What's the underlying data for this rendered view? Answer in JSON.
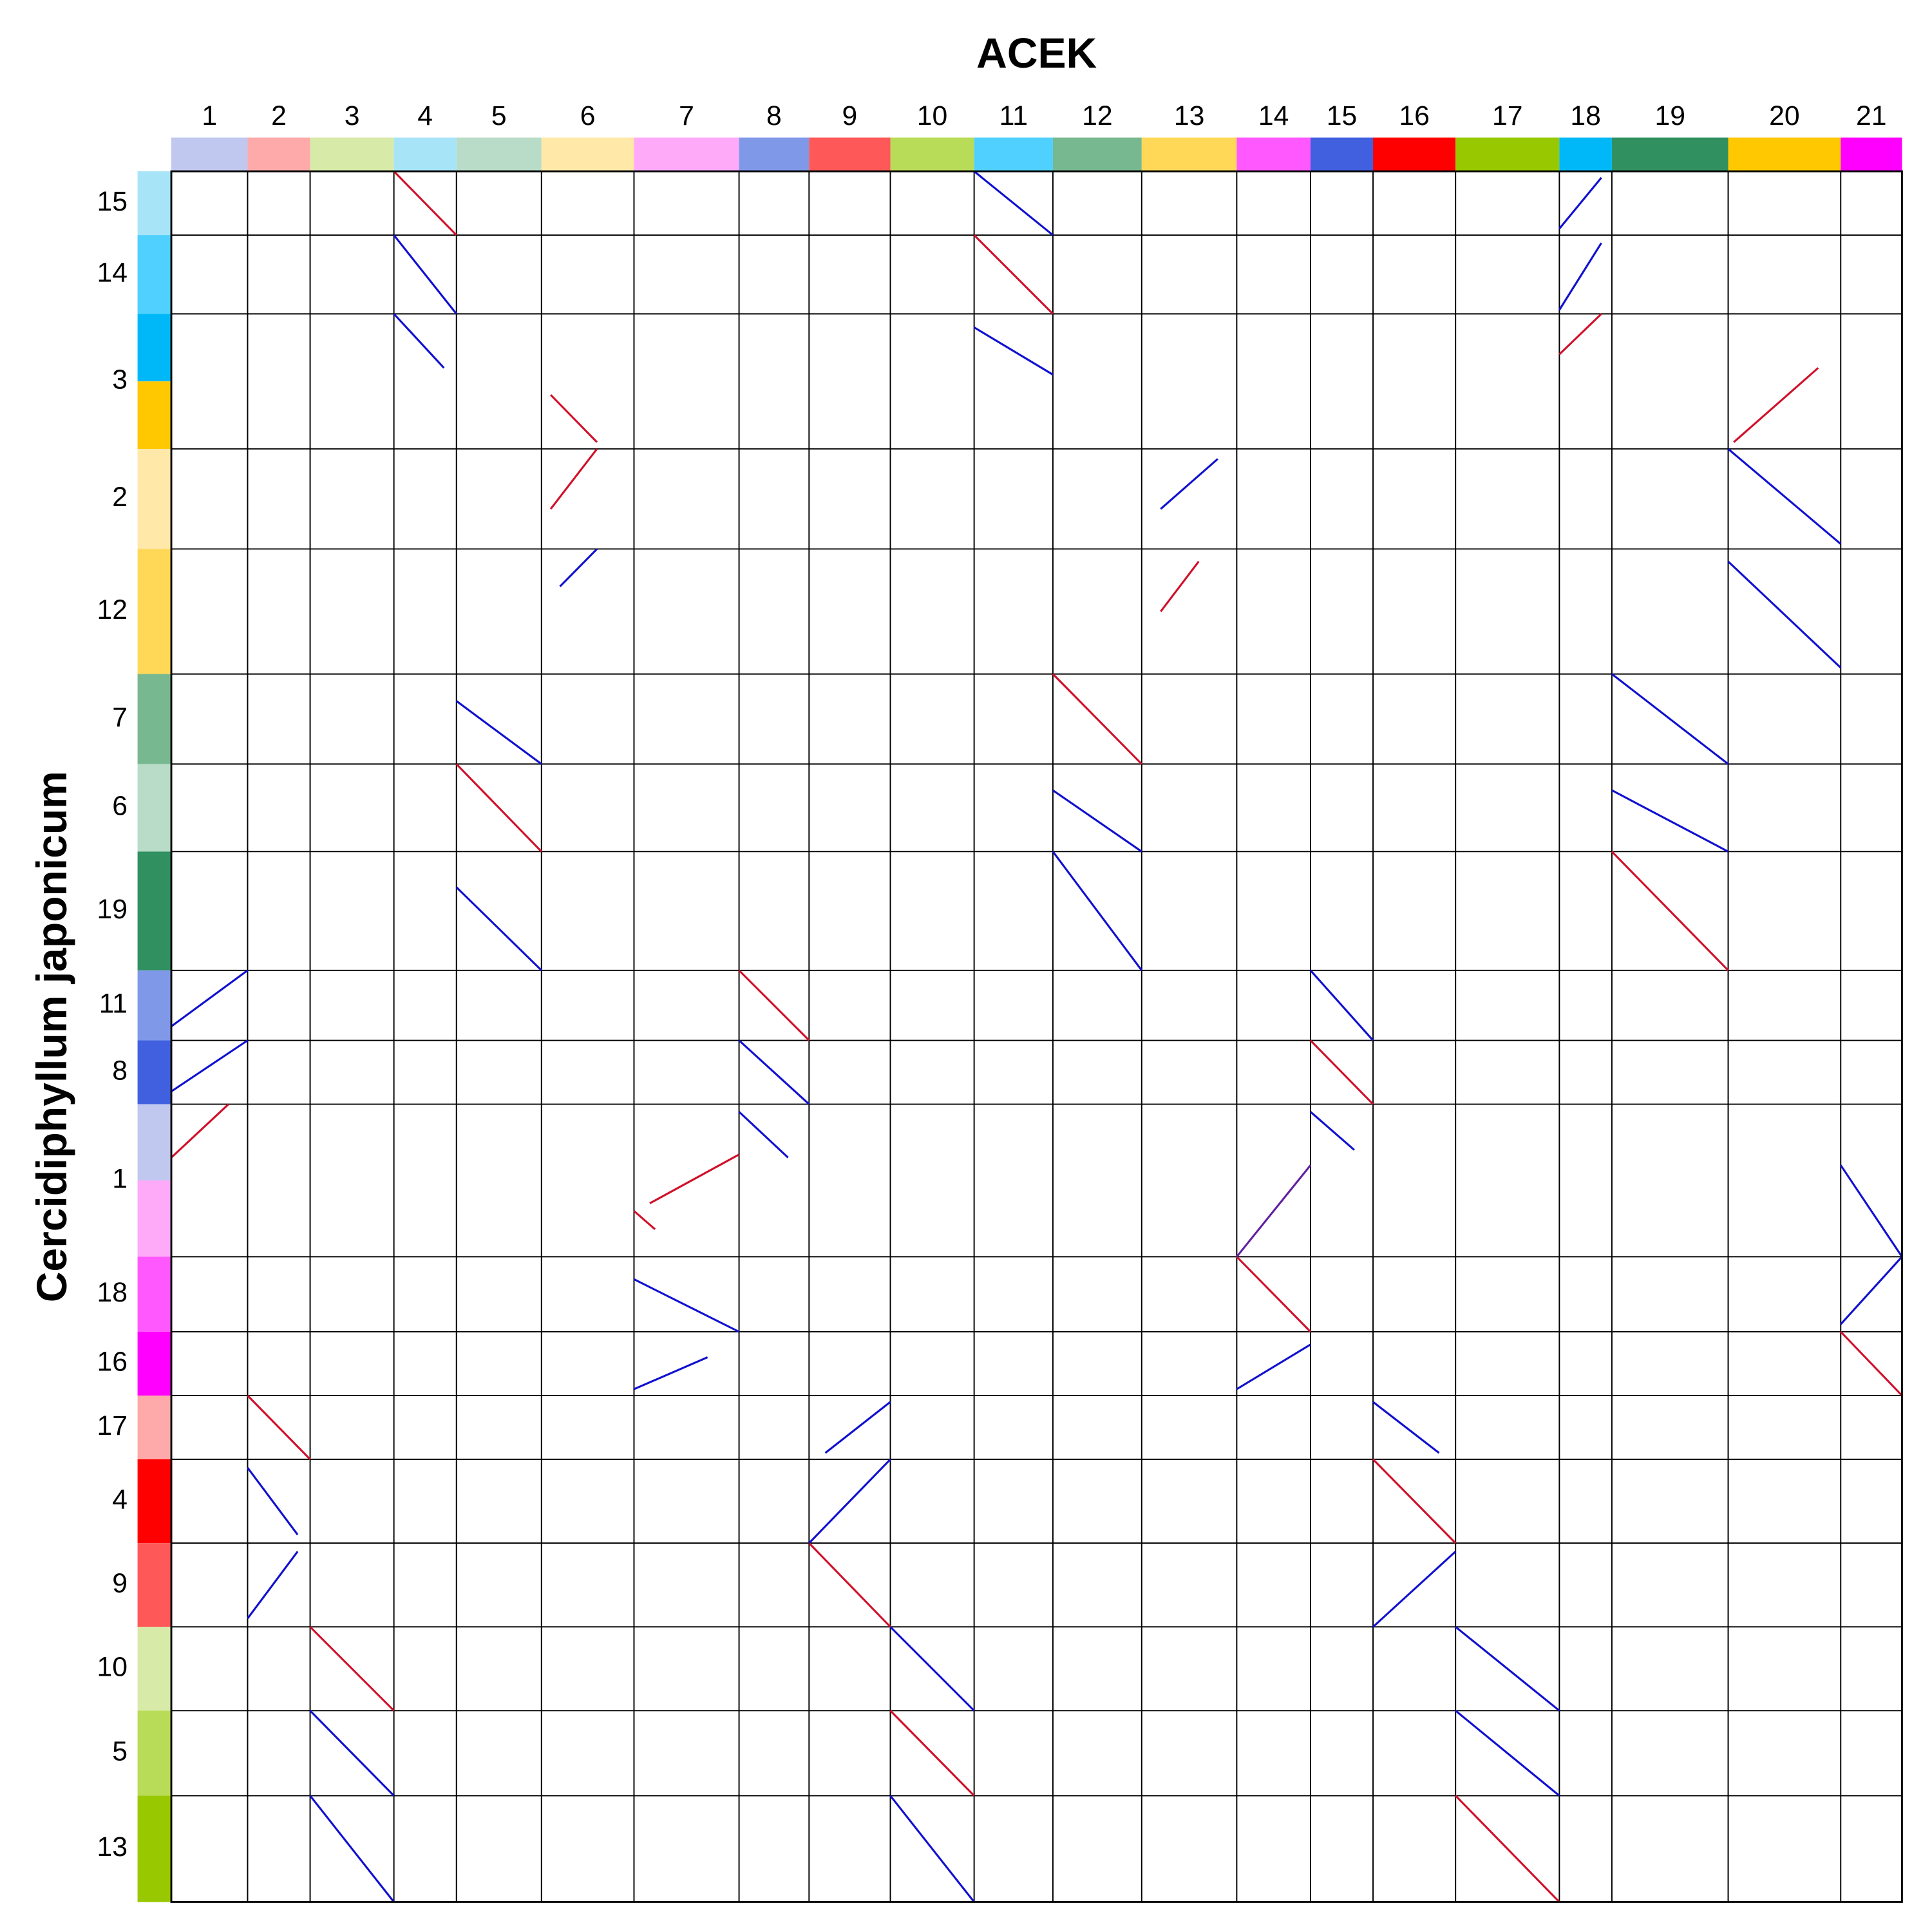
{
  "chart_data": {
    "type": "dotplot",
    "title": "ACEK",
    "y_label": "Cercidiphyllum japonicum",
    "x_chromosomes": {
      "labels": [
        "1",
        "2",
        "3",
        "4",
        "5",
        "6",
        "7",
        "8",
        "9",
        "10",
        "11",
        "12",
        "13",
        "14",
        "15",
        "16",
        "17",
        "18",
        "19",
        "20",
        "21"
      ],
      "sizes": [
        61,
        50,
        67,
        50,
        68,
        74,
        84,
        56,
        65,
        67,
        63,
        71,
        76,
        59,
        50,
        66,
        83,
        42,
        93,
        90,
        49
      ],
      "colors": [
        "#c0c8f0",
        "#ffaaaa",
        "#d8eaa8",
        "#a8e4f8",
        "#b8dcc8",
        "#ffe8a8",
        "#ffaaf8",
        "#8098e8",
        "#ff5858",
        "#b8dc58",
        "#50d0ff",
        "#78b890",
        "#ffd858",
        "#ff58ff",
        "#4060e0",
        "#ff0000",
        "#98c800",
        "#00b8f8",
        "#309060",
        "#ffc800",
        "#ff00ff"
      ]
    },
    "y_chromosomes": {
      "labels": [
        "15",
        "14",
        "3",
        "2",
        "12",
        "7",
        "6",
        "19",
        "11",
        "8",
        "1",
        "18",
        "16",
        "17",
        "4",
        "9",
        "10",
        "5",
        "13"
      ],
      "sizes": [
        51,
        63,
        108,
        80,
        100,
        72,
        70,
        95,
        56,
        51,
        122,
        60,
        51,
        51,
        67,
        67,
        67,
        68,
        85
      ],
      "colors": [
        [
          "#a8e4f8"
        ],
        [
          "#50d0ff"
        ],
        [
          "#00b8f8",
          "#ffc800"
        ],
        [
          "#ffe8a8"
        ],
        [
          "#ffd858"
        ],
        [
          "#78b890"
        ],
        [
          "#b8dcc8"
        ],
        [
          "#309060"
        ],
        [
          "#8098e8"
        ],
        [
          "#4060e0"
        ],
        [
          "#c0c8f0",
          "#ffaaf8"
        ],
        [
          "#ff58ff"
        ],
        [
          "#ff00ff"
        ],
        [
          "#ffaaaa"
        ],
        [
          "#ff0000"
        ],
        [
          "#ff5858"
        ],
        [
          "#d8eaa8"
        ],
        [
          "#b8dc58"
        ],
        [
          "#98c800"
        ]
      ]
    },
    "blocks": [
      {
        "x": "4",
        "y": "15",
        "color": "#d0102a",
        "from": [
          0,
          0
        ],
        "to": [
          1,
          1
        ]
      },
      {
        "x": "11",
        "y": "14",
        "color": "#d0102a",
        "from": [
          0,
          0
        ],
        "to": [
          1,
          1
        ]
      },
      {
        "x": "12",
        "y": "7",
        "color": "#d0102a",
        "from": [
          0,
          0
        ],
        "to": [
          1,
          1
        ]
      },
      {
        "x": "5",
        "y": "6",
        "color": "#d0102a",
        "from": [
          0,
          0
        ],
        "to": [
          1,
          1
        ]
      },
      {
        "x": "19",
        "y": "19",
        "color": "#d0102a",
        "from": [
          0,
          0
        ],
        "to": [
          1,
          1
        ]
      },
      {
        "x": "8",
        "y": "11",
        "color": "#d0102a",
        "from": [
          0,
          0
        ],
        "to": [
          1,
          1
        ]
      },
      {
        "x": "15",
        "y": "8",
        "color": "#d0102a",
        "from": [
          0,
          0
        ],
        "to": [
          1,
          1
        ]
      },
      {
        "x": "14",
        "y": "18",
        "color": "#d0102a",
        "from": [
          0,
          0
        ],
        "to": [
          1,
          1
        ]
      },
      {
        "x": "21",
        "y": "16",
        "color": "#d0102a",
        "from": [
          0,
          0
        ],
        "to": [
          1,
          1
        ]
      },
      {
        "x": "2",
        "y": "17",
        "color": "#d0102a",
        "from": [
          0,
          0
        ],
        "to": [
          1,
          1
        ]
      },
      {
        "x": "16",
        "y": "4",
        "color": "#d0102a",
        "from": [
          0,
          0
        ],
        "to": [
          1,
          1
        ]
      },
      {
        "x": "9",
        "y": "9",
        "color": "#d0102a",
        "from": [
          0,
          0
        ],
        "to": [
          1,
          1
        ]
      },
      {
        "x": "3",
        "y": "10",
        "color": "#d0102a",
        "from": [
          0,
          0
        ],
        "to": [
          1,
          1
        ]
      },
      {
        "x": "10",
        "y": "5",
        "color": "#d0102a",
        "from": [
          0,
          0
        ],
        "to": [
          1,
          1
        ]
      },
      {
        "x": "17",
        "y": "13",
        "color": "#d0102a",
        "from": [
          0,
          0
        ],
        "to": [
          1,
          1
        ]
      },
      {
        "x": "7",
        "y": "1",
        "color": "#d0102a",
        "from": [
          0.15,
          0.65
        ],
        "to": [
          1,
          0.33
        ]
      },
      {
        "x": "7",
        "y": "1",
        "color": "#d0102a",
        "from": [
          0,
          0.7
        ],
        "to": [
          0.2,
          0.82
        ]
      },
      {
        "x": "14",
        "y": "1",
        "color": "#6020a0",
        "from": [
          0,
          1
        ],
        "to": [
          1,
          0.4
        ]
      },
      {
        "x": "1",
        "y": "1",
        "color": "#d0102a",
        "from": [
          0,
          0.35
        ],
        "to": [
          0.75,
          0
        ]
      },
      {
        "x": "6",
        "y": "3",
        "color": "#d0102a",
        "from": [
          0.1,
          0.6
        ],
        "to": [
          0.6,
          0.95
        ]
      },
      {
        "x": "6",
        "y": "2",
        "color": "#d0102a",
        "from": [
          0.1,
          0.6
        ],
        "to": [
          0.6,
          0
        ]
      },
      {
        "x": "20",
        "y": "3",
        "color": "#d0102a",
        "from": [
          0.05,
          0.95
        ],
        "to": [
          0.8,
          0.4
        ]
      },
      {
        "x": "18",
        "y": "3",
        "color": "#d0102a",
        "from": [
          0,
          0.3
        ],
        "to": [
          0.8,
          0
        ]
      },
      {
        "x": "13",
        "y": "12",
        "color": "#d0102a",
        "from": [
          0.2,
          0.5
        ],
        "to": [
          0.6,
          0.1
        ]
      },
      {
        "x": "11",
        "y": "15",
        "color": "#1010d0",
        "from": [
          0,
          0
        ],
        "to": [
          1,
          1
        ]
      },
      {
        "x": "4",
        "y": "14",
        "color": "#1010d0",
        "from": [
          0,
          0
        ],
        "to": [
          1,
          1
        ]
      },
      {
        "x": "18",
        "y": "15",
        "color": "#1010d0",
        "from": [
          0,
          0.9
        ],
        "to": [
          0.8,
          0.1
        ]
      },
      {
        "x": "18",
        "y": "14",
        "color": "#1010d0",
        "from": [
          0,
          0.95
        ],
        "to": [
          0.8,
          0.1
        ]
      },
      {
        "x": "12",
        "y": "6",
        "color": "#1010d0",
        "from": [
          0,
          0.3
        ],
        "to": [
          1,
          1
        ]
      },
      {
        "x": "12",
        "y": "19",
        "color": "#1010d0",
        "from": [
          0,
          0
        ],
        "to": [
          1,
          1
        ]
      },
      {
        "x": "19",
        "y": "7",
        "color": "#1010d0",
        "from": [
          0,
          0
        ],
        "to": [
          1,
          1
        ]
      },
      {
        "x": "19",
        "y": "6",
        "color": "#1010d0",
        "from": [
          0,
          0.3
        ],
        "to": [
          1,
          1
        ]
      },
      {
        "x": "5",
        "y": "7",
        "color": "#1010d0",
        "from": [
          0,
          0.3
        ],
        "to": [
          1,
          1
        ]
      },
      {
        "x": "5",
        "y": "19",
        "color": "#1010d0",
        "from": [
          0,
          0.3
        ],
        "to": [
          1,
          1
        ]
      },
      {
        "x": "15",
        "y": "11",
        "color": "#1010d0",
        "from": [
          0,
          0
        ],
        "to": [
          1,
          1
        ]
      },
      {
        "x": "8",
        "y": "8",
        "color": "#1010d0",
        "from": [
          0,
          0
        ],
        "to": [
          1,
          1
        ]
      },
      {
        "x": "8",
        "y": "1",
        "color": "#1010d0",
        "from": [
          0,
          0.05
        ],
        "to": [
          0.7,
          0.35
        ]
      },
      {
        "x": "15",
        "y": "1",
        "color": "#1010d0",
        "from": [
          0,
          0.05
        ],
        "to": [
          0.7,
          0.3
        ]
      },
      {
        "x": "7",
        "y": "18",
        "color": "#1010d0",
        "from": [
          0,
          0.3
        ],
        "to": [
          1,
          1
        ]
      },
      {
        "x": "7",
        "y": "16",
        "color": "#1010d0",
        "from": [
          0,
          0.9
        ],
        "to": [
          0.7,
          0.4
        ]
      },
      {
        "x": "14",
        "y": "16",
        "color": "#1010d0",
        "from": [
          0,
          0.9
        ],
        "to": [
          1,
          0.2
        ]
      },
      {
        "x": "21",
        "y": "18",
        "color": "#1010d0",
        "from": [
          0,
          0.9
        ],
        "to": [
          1,
          0
        ]
      },
      {
        "x": "21",
        "y": "1",
        "color": "#1010d0",
        "from": [
          0,
          0.4
        ],
        "to": [
          1,
          1
        ]
      },
      {
        "x": "10",
        "y": "10",
        "color": "#1010d0",
        "from": [
          0,
          0
        ],
        "to": [
          1,
          1
        ]
      },
      {
        "x": "17",
        "y": "10",
        "color": "#1010d0",
        "from": [
          0,
          0
        ],
        "to": [
          1,
          1
        ]
      },
      {
        "x": "3",
        "y": "5",
        "color": "#1010d0",
        "from": [
          0,
          0
        ],
        "to": [
          1,
          1
        ]
      },
      {
        "x": "17",
        "y": "5",
        "color": "#1010d0",
        "from": [
          0,
          0
        ],
        "to": [
          1,
          1
        ]
      },
      {
        "x": "3",
        "y": "13",
        "color": "#1010d0",
        "from": [
          0,
          0
        ],
        "to": [
          1,
          1
        ]
      },
      {
        "x": "10",
        "y": "13",
        "color": "#1010d0",
        "from": [
          0,
          0
        ],
        "to": [
          1,
          1
        ]
      },
      {
        "x": "2",
        "y": "4",
        "color": "#1010d0",
        "from": [
          0,
          0.1
        ],
        "to": [
          0.8,
          0.9
        ]
      },
      {
        "x": "9",
        "y": "17",
        "color": "#1010d0",
        "from": [
          0.2,
          0.9
        ],
        "to": [
          1,
          0.1
        ]
      },
      {
        "x": "9",
        "y": "4",
        "color": "#1010d0",
        "from": [
          0,
          1
        ],
        "to": [
          1,
          0
        ]
      },
      {
        "x": "2",
        "y": "9",
        "color": "#1010d0",
        "from": [
          0,
          0.9
        ],
        "to": [
          0.8,
          0.1
        ]
      },
      {
        "x": "16",
        "y": "17",
        "color": "#1010d0",
        "from": [
          0,
          0.1
        ],
        "to": [
          0.8,
          0.9
        ]
      },
      {
        "x": "16",
        "y": "9",
        "color": "#1010d0",
        "from": [
          0,
          1
        ],
        "to": [
          1,
          0.1
        ]
      },
      {
        "x": "1",
        "y": "11",
        "color": "#1010d0",
        "from": [
          0,
          0.8
        ],
        "to": [
          1,
          0
        ]
      },
      {
        "x": "1",
        "y": "8",
        "color": "#1010d0",
        "from": [
          0,
          0.8
        ],
        "to": [
          1,
          0
        ]
      },
      {
        "x": "20",
        "y": "2",
        "color": "#1010d0",
        "from": [
          0,
          0
        ],
        "to": [
          1,
          0.95
        ]
      },
      {
        "x": "13",
        "y": "2",
        "color": "#1010d0",
        "from": [
          0.2,
          0.6
        ],
        "to": [
          0.8,
          0.1
        ]
      },
      {
        "x": "20",
        "y": "12",
        "color": "#1010d0",
        "from": [
          0,
          0.1
        ],
        "to": [
          1,
          0.95
        ]
      },
      {
        "x": "6",
        "y": "12",
        "color": "#1010d0",
        "from": [
          0.2,
          0.3
        ],
        "to": [
          0.6,
          0
        ]
      },
      {
        "x": "4",
        "y": "3",
        "color": "#1010d0",
        "from": [
          0,
          0
        ],
        "to": [
          0.8,
          0.4
        ]
      },
      {
        "x": "11",
        "y": "3",
        "color": "#1010d0",
        "from": [
          0,
          0.1
        ],
        "to": [
          1,
          0.45
        ]
      }
    ]
  }
}
